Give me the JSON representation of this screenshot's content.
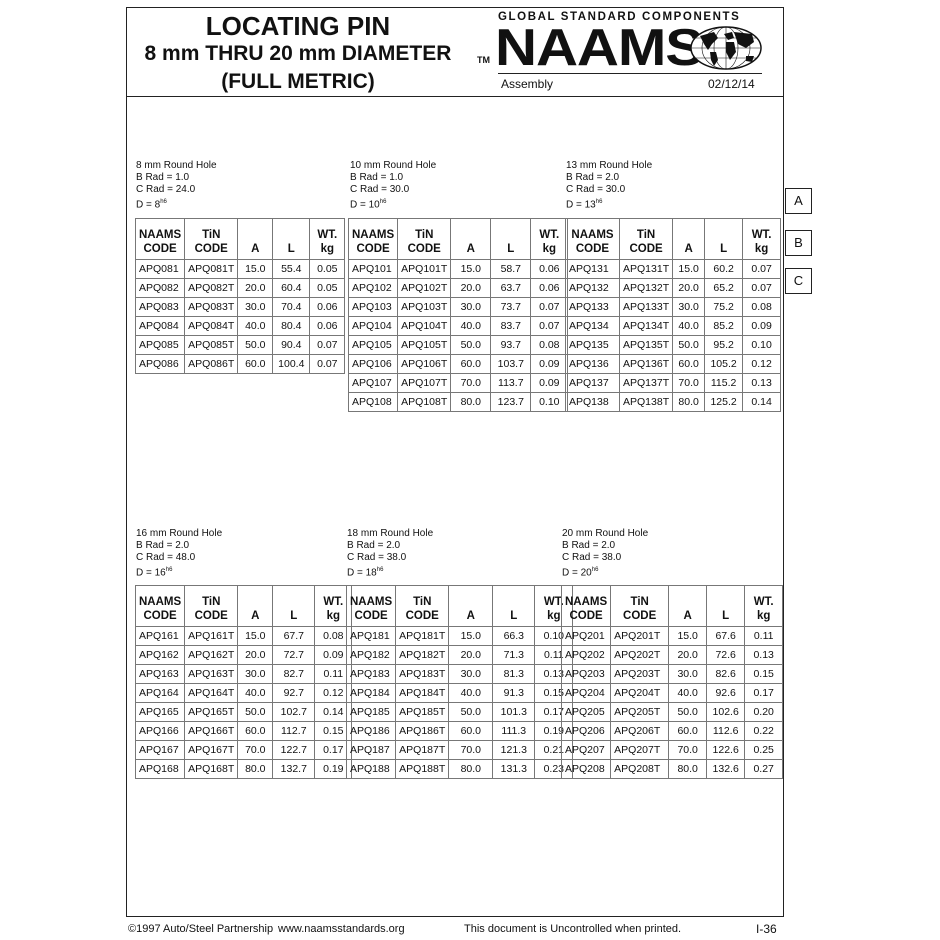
{
  "header": {
    "title_line1": "LOCATING PIN",
    "title_line2": "8 mm THRU 20 mm DIAMETER",
    "title_line3": "(FULL METRIC)",
    "logo_tagline": "GLOBAL STANDARD COMPONENTS",
    "logo_text": "NAAMS",
    "trademark": "TM",
    "section": "Assembly",
    "date": "02/12/14"
  },
  "side_tabs": [
    "A",
    "B",
    "C"
  ],
  "columns": [
    [
      "NAAMS",
      "CODE"
    ],
    [
      "TiN",
      "CODE"
    ],
    [
      "A"
    ],
    [
      "L"
    ],
    [
      "WT.",
      "kg"
    ]
  ],
  "tables": [
    {
      "hole": "8 mm Round Hole",
      "b_rad": "B Rad = 1.0",
      "c_rad": "C Rad = 24.0",
      "d": "D = 8",
      "d_tol": "h6",
      "rows": [
        [
          "APQ081",
          "APQ081T",
          "15.0",
          "55.4",
          "0.05"
        ],
        [
          "APQ082",
          "APQ082T",
          "20.0",
          "60.4",
          "0.05"
        ],
        [
          "APQ083",
          "APQ083T",
          "30.0",
          "70.4",
          "0.06"
        ],
        [
          "APQ084",
          "APQ084T",
          "40.0",
          "80.4",
          "0.06"
        ],
        [
          "APQ085",
          "APQ085T",
          "50.0",
          "90.4",
          "0.07"
        ],
        [
          "APQ086",
          "APQ086T",
          "60.0",
          "100.4",
          "0.07"
        ]
      ]
    },
    {
      "hole": "10 mm Round Hole",
      "b_rad": "B Rad = 1.0",
      "c_rad": "C Rad = 30.0",
      "d": "D = 10",
      "d_tol": "h6",
      "rows": [
        [
          "APQ101",
          "APQ101T",
          "15.0",
          "58.7",
          "0.06"
        ],
        [
          "APQ102",
          "APQ102T",
          "20.0",
          "63.7",
          "0.06"
        ],
        [
          "APQ103",
          "APQ103T",
          "30.0",
          "73.7",
          "0.07"
        ],
        [
          "APQ104",
          "APQ104T",
          "40.0",
          "83.7",
          "0.07"
        ],
        [
          "APQ105",
          "APQ105T",
          "50.0",
          "93.7",
          "0.08"
        ],
        [
          "APQ106",
          "APQ106T",
          "60.0",
          "103.7",
          "0.09"
        ],
        [
          "APQ107",
          "APQ107T",
          "70.0",
          "113.7",
          "0.09"
        ],
        [
          "APQ108",
          "APQ108T",
          "80.0",
          "123.7",
          "0.10"
        ]
      ]
    },
    {
      "hole": "13 mm Round Hole",
      "b_rad": "B Rad = 2.0",
      "c_rad": "C Rad = 30.0",
      "d": "D = 13",
      "d_tol": "h6",
      "rows": [
        [
          "APQ131",
          "APQ131T",
          "15.0",
          "60.2",
          "0.07"
        ],
        [
          "APQ132",
          "APQ132T",
          "20.0",
          "65.2",
          "0.07"
        ],
        [
          "APQ133",
          "APQ133T",
          "30.0",
          "75.2",
          "0.08"
        ],
        [
          "APQ134",
          "APQ134T",
          "40.0",
          "85.2",
          "0.09"
        ],
        [
          "APQ135",
          "APQ135T",
          "50.0",
          "95.2",
          "0.10"
        ],
        [
          "APQ136",
          "APQ136T",
          "60.0",
          "105.2",
          "0.12"
        ],
        [
          "APQ137",
          "APQ137T",
          "70.0",
          "115.2",
          "0.13"
        ],
        [
          "APQ138",
          "APQ138T",
          "80.0",
          "125.2",
          "0.14"
        ]
      ]
    },
    {
      "hole": "16 mm Round Hole",
      "b_rad": "B Rad = 2.0",
      "c_rad": "C Rad = 48.0",
      "d": "D = 16",
      "d_tol": "h6",
      "rows": [
        [
          "APQ161",
          "APQ161T",
          "15.0",
          "67.7",
          "0.08"
        ],
        [
          "APQ162",
          "APQ162T",
          "20.0",
          "72.7",
          "0.09"
        ],
        [
          "APQ163",
          "APQ163T",
          "30.0",
          "82.7",
          "0.11"
        ],
        [
          "APQ164",
          "APQ164T",
          "40.0",
          "92.7",
          "0.12"
        ],
        [
          "APQ165",
          "APQ165T",
          "50.0",
          "102.7",
          "0.14"
        ],
        [
          "APQ166",
          "APQ166T",
          "60.0",
          "112.7",
          "0.15"
        ],
        [
          "APQ167",
          "APQ167T",
          "70.0",
          "122.7",
          "0.17"
        ],
        [
          "APQ168",
          "APQ168T",
          "80.0",
          "132.7",
          "0.19"
        ]
      ]
    },
    {
      "hole": "18 mm Round Hole",
      "b_rad": "B Rad = 2.0",
      "c_rad": "C Rad = 38.0",
      "d": "D = 18",
      "d_tol": "h6",
      "rows": [
        [
          "APQ181",
          "APQ181T",
          "15.0",
          "66.3",
          "0.10"
        ],
        [
          "APQ182",
          "APQ182T",
          "20.0",
          "71.3",
          "0.11"
        ],
        [
          "APQ183",
          "APQ183T",
          "30.0",
          "81.3",
          "0.13"
        ],
        [
          "APQ184",
          "APQ184T",
          "40.0",
          "91.3",
          "0.15"
        ],
        [
          "APQ185",
          "APQ185T",
          "50.0",
          "101.3",
          "0.17"
        ],
        [
          "APQ186",
          "APQ186T",
          "60.0",
          "111.3",
          "0.19"
        ],
        [
          "APQ187",
          "APQ187T",
          "70.0",
          "121.3",
          "0.21"
        ],
        [
          "APQ188",
          "APQ188T",
          "80.0",
          "131.3",
          "0.23"
        ]
      ]
    },
    {
      "hole": "20 mm Round Hole",
      "b_rad": "B Rad = 2.0",
      "c_rad": "C Rad = 38.0",
      "d": "D = 20",
      "d_tol": "h6",
      "rows": [
        [
          "APQ201",
          "APQ201T",
          "15.0",
          "67.6",
          "0.11"
        ],
        [
          "APQ202",
          "APQ202T",
          "20.0",
          "72.6",
          "0.13"
        ],
        [
          "APQ203",
          "APQ203T",
          "30.0",
          "82.6",
          "0.15"
        ],
        [
          "APQ204",
          "APQ204T",
          "40.0",
          "92.6",
          "0.17"
        ],
        [
          "APQ205",
          "APQ205T",
          "50.0",
          "102.6",
          "0.20"
        ],
        [
          "APQ206",
          "APQ206T",
          "60.0",
          "112.6",
          "0.22"
        ],
        [
          "APQ207",
          "APQ207T",
          "70.0",
          "122.6",
          "0.25"
        ],
        [
          "APQ208",
          "APQ208T",
          "80.0",
          "132.6",
          "0.27"
        ]
      ]
    }
  ],
  "footer": {
    "copyright": "©1997 Auto/Steel Partnership",
    "website": "www.naamsstandards.org",
    "notice": "This document is Uncontrolled when printed.",
    "page": "I-36"
  }
}
